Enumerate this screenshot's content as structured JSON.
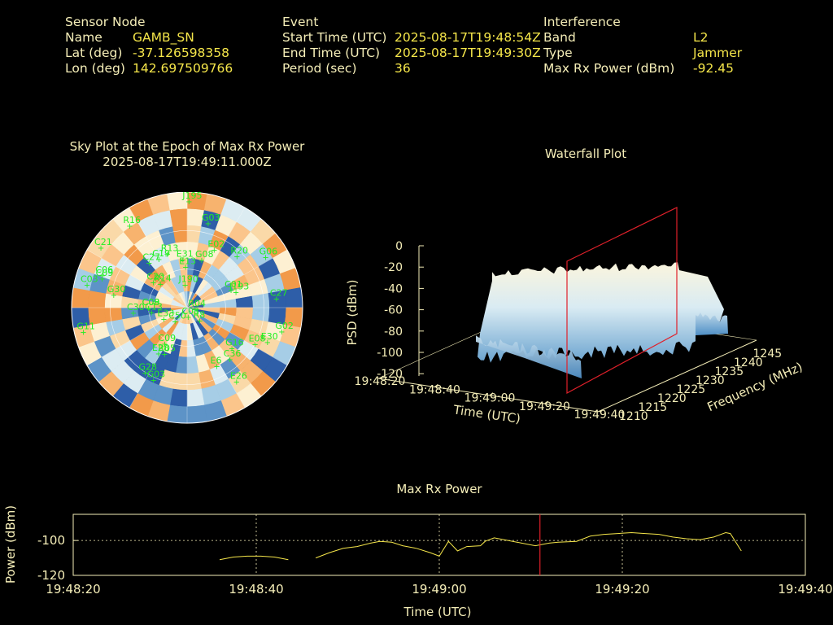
{
  "header": {
    "sensor": {
      "heading": "Sensor Node",
      "rows": [
        {
          "label": "Name",
          "value": "GAMB_SN"
        },
        {
          "label": "Lat (deg)",
          "value": "-37.126598358"
        },
        {
          "label": "Lon (deg)",
          "value": "142.697509766"
        }
      ]
    },
    "event": {
      "heading": "Event",
      "rows": [
        {
          "label": "Start Time (UTC)",
          "value": "2025-08-17T19:48:54Z"
        },
        {
          "label": "End Time (UTC)",
          "value": "2025-08-17T19:49:30Z"
        },
        {
          "label": "Period (sec)",
          "value": "36"
        }
      ]
    },
    "interference": {
      "heading": "Interference",
      "rows": [
        {
          "label": "Band",
          "value": "L2"
        },
        {
          "label": "Type",
          "value": "Jammer"
        },
        {
          "label": "Max Rx Power (dBm)",
          "value": "-92.45"
        }
      ]
    }
  },
  "skyplot": {
    "title": "Sky Plot at the Epoch of Max Rx Power",
    "subtitle": "2025-08-17T19:49:11.000Z",
    "satellites": [
      {
        "id": "R16",
        "az": 325,
        "el": 12
      },
      {
        "id": "J195",
        "az": 1,
        "el": 7
      },
      {
        "id": "G03",
        "az": 14,
        "el": 22
      },
      {
        "id": "C21",
        "az": 305,
        "el": 8
      },
      {
        "id": "C27",
        "az": 320,
        "el": 44
      },
      {
        "id": "C19",
        "az": 330,
        "el": 46
      },
      {
        "id": "R13",
        "az": 340,
        "el": 45
      },
      {
        "id": "E31",
        "az": 355,
        "el": 52
      },
      {
        "id": "E13",
        "az": 358,
        "el": 58
      },
      {
        "id": "G08",
        "az": 17,
        "el": 51
      },
      {
        "id": "E02",
        "az": 25,
        "el": 40
      },
      {
        "id": "R20",
        "az": 44,
        "el": 34
      },
      {
        "id": "G06",
        "az": 57,
        "el": 17
      },
      {
        "id": "C03",
        "az": 283,
        "el": 10
      },
      {
        "id": "C09",
        "az": 289,
        "el": 20
      },
      {
        "id": "C06",
        "az": 291,
        "el": 19
      },
      {
        "id": "G30",
        "az": 280,
        "el": 32
      },
      {
        "id": "C09",
        "az": 270,
        "el": 60
      },
      {
        "id": "R14",
        "az": 312,
        "el": 62
      },
      {
        "id": "C20",
        "az": 307,
        "el": 57
      },
      {
        "id": "C08",
        "az": 270,
        "el": 60
      },
      {
        "id": "J190",
        "az": 355,
        "el": 72
      },
      {
        "id": "C30",
        "az": 265,
        "el": 48
      },
      {
        "id": "C13",
        "az": 263,
        "el": 62
      },
      {
        "id": "E33",
        "az": 245,
        "el": 70
      },
      {
        "id": "R04",
        "az": 100,
        "el": 84
      },
      {
        "id": "C50",
        "az": 222,
        "el": 76
      },
      {
        "id": "C03",
        "az": 173,
        "el": 83
      },
      {
        "id": "R8",
        "az": 135,
        "el": 76
      },
      {
        "id": "C01",
        "az": 68,
        "el": 53
      },
      {
        "id": "J193",
        "az": 72,
        "el": 50
      },
      {
        "id": "C27",
        "az": 84,
        "el": 20
      },
      {
        "id": "G11",
        "az": 257,
        "el": 7
      },
      {
        "id": "C09",
        "az": 212,
        "el": 57
      },
      {
        "id": "E28",
        "az": 212,
        "el": 48
      },
      {
        "id": "R05",
        "az": 206,
        "el": 50
      },
      {
        "id": "G28",
        "az": 213,
        "el": 30
      },
      {
        "id": "G03",
        "az": 205,
        "el": 28
      },
      {
        "id": "E30",
        "az": 113,
        "el": 22
      },
      {
        "id": "E08",
        "az": 118,
        "el": 30
      },
      {
        "id": "G16",
        "az": 132,
        "el": 43
      },
      {
        "id": "G02",
        "az": 104,
        "el": 14
      },
      {
        "id": "C36",
        "az": 140,
        "el": 38
      },
      {
        "id": "E6",
        "az": 153,
        "el": 39
      },
      {
        "id": "E26",
        "az": 146,
        "el": 21
      }
    ]
  },
  "waterfall": {
    "title": "Waterfall Plot",
    "zlabel": "PSD (dBm)",
    "xlabel": "Time (UTC)",
    "ylabel": "Frequency (MHz)",
    "zticks": [
      "0",
      "-20",
      "-40",
      "-60",
      "-80",
      "-100",
      "-120"
    ],
    "xticks": [
      "19:48:20",
      "19:48:40",
      "19:49:00",
      "19:49:20",
      "19:49:40"
    ],
    "yticks": [
      "1210",
      "1215",
      "1220",
      "1225",
      "1230",
      "1235",
      "1240",
      "1245"
    ]
  },
  "chart_data": {
    "type": "line",
    "title": "Max Rx Power",
    "xlabel": "Time (UTC)",
    "ylabel": "Power (dBm)",
    "xticks": [
      "19:48:20",
      "19:48:40",
      "19:49:00",
      "19:49:20",
      "19:49:40"
    ],
    "xlim_seconds_after_19_48_20": [
      0,
      80
    ],
    "ylim": [
      -120,
      -85
    ],
    "yticks": [
      -120,
      -100
    ],
    "grid": true,
    "line_color": "#f5e64a",
    "marker_time": "19:49:11",
    "marker_color": "#e0202a",
    "series": [
      {
        "name": "",
        "segments": [
          [
            [
              16.0,
              -111.0
            ],
            [
              17.5,
              -109.5
            ],
            [
              19.0,
              -109.0
            ],
            [
              20.5,
              -109.0
            ],
            [
              22.0,
              -109.5
            ],
            [
              23.5,
              -111.0
            ]
          ],
          [
            [
              26.5,
              -110.0
            ],
            [
              28.0,
              -107.0
            ],
            [
              29.5,
              -104.5
            ],
            [
              31.0,
              -103.5
            ],
            [
              32.5,
              -101.5
            ],
            [
              33.5,
              -100.5
            ],
            [
              34.8,
              -101.0
            ],
            [
              36.0,
              -103.0
            ],
            [
              37.5,
              -104.5
            ],
            [
              39.0,
              -107.0
            ],
            [
              40.0,
              -109.0
            ],
            [
              41.0,
              -100.5
            ],
            [
              42.0,
              -106.0
            ],
            [
              43.0,
              -103.5
            ],
            [
              44.5,
              -103.0
            ],
            [
              45.0,
              -100.5
            ],
            [
              46.0,
              -98.5
            ],
            [
              47.5,
              -100.0
            ],
            [
              49.0,
              -101.5
            ],
            [
              50.5,
              -103.0
            ],
            [
              52.0,
              -101.5
            ],
            [
              53.0,
              -101.0
            ],
            [
              55.0,
              -100.5
            ],
            [
              56.5,
              -97.5
            ],
            [
              58.0,
              -96.5
            ],
            [
              59.5,
              -96.0
            ],
            [
              61.0,
              -95.5
            ],
            [
              62.5,
              -96.0
            ],
            [
              64.0,
              -96.5
            ],
            [
              65.5,
              -98.0
            ],
            [
              67.0,
              -99.0
            ],
            [
              68.5,
              -99.5
            ],
            [
              70.0,
              -98.0
            ],
            [
              71.3,
              -95.5
            ],
            [
              71.8,
              -96.0
            ],
            [
              73.0,
              -106.0
            ]
          ]
        ]
      }
    ]
  }
}
